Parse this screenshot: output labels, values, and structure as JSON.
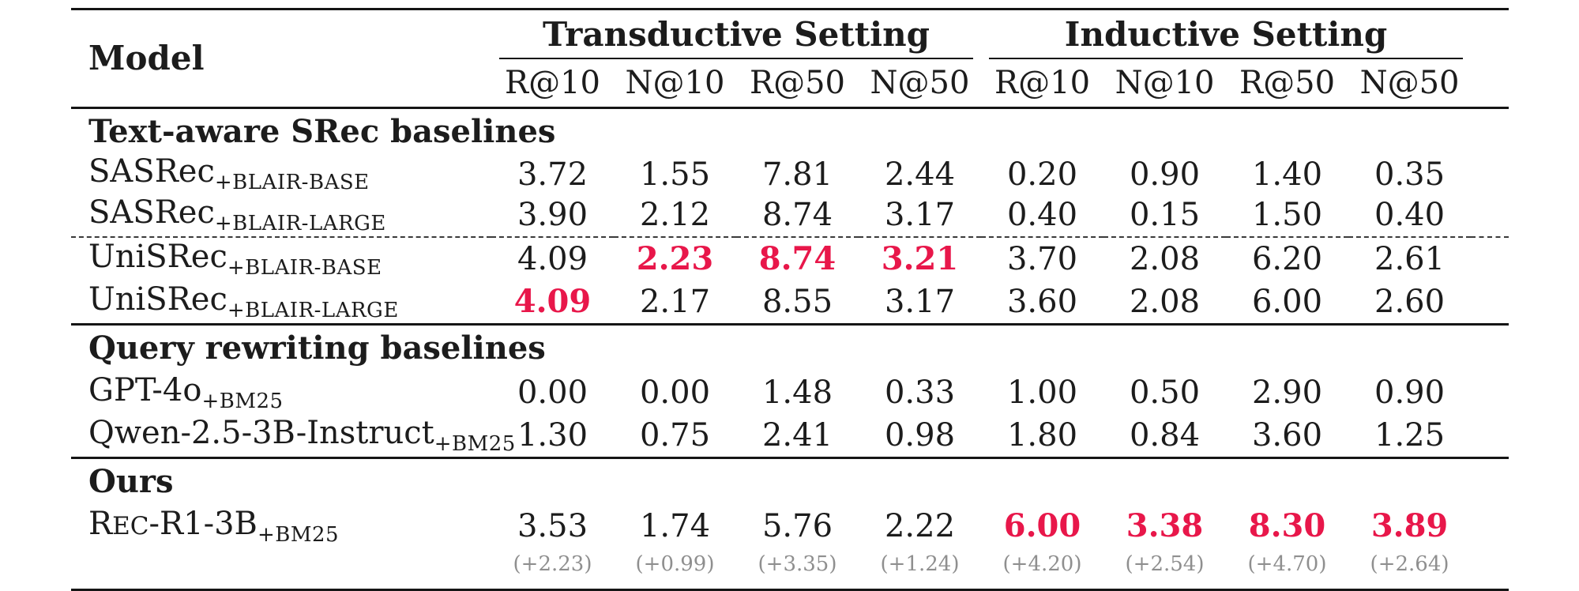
{
  "header": {
    "model_label": "Model",
    "groups": [
      {
        "label": "Transductive Setting",
        "metrics": [
          "R@10",
          "N@10",
          "R@50",
          "N@50"
        ]
      },
      {
        "label": "Inductive Setting",
        "metrics": [
          "R@10",
          "N@10",
          "R@50",
          "N@50"
        ]
      }
    ]
  },
  "sections": [
    {
      "header": "Text-aware SRec baselines",
      "rows": [
        {
          "model": "SASRec",
          "model_sub": "+BLAIR-BASE",
          "values": [
            "3.72",
            "1.55",
            "7.81",
            "2.44",
            "0.20",
            "0.90",
            "1.40",
            "0.35"
          ],
          "highlight_red_indices": []
        },
        {
          "model": "SASRec",
          "model_sub": "+BLAIR-LARGE",
          "values": [
            "3.90",
            "2.12",
            "8.74",
            "3.17",
            "0.40",
            "0.15",
            "1.50",
            "0.40"
          ],
          "highlight_red_indices": []
        },
        {
          "model": "UniSRec",
          "model_sub": "+BLAIR-BASE",
          "values": [
            "4.09",
            "2.23",
            "8.74",
            "3.21",
            "3.70",
            "2.08",
            "6.20",
            "2.61"
          ],
          "highlight_red_indices": [
            1,
            2,
            3
          ],
          "dashed_rule_above": true
        },
        {
          "model": "UniSRec",
          "model_sub": "+BLAIR-LARGE",
          "values": [
            "4.09",
            "2.17",
            "8.55",
            "3.17",
            "3.60",
            "2.08",
            "6.00",
            "2.60"
          ],
          "highlight_red_indices": [
            0
          ]
        }
      ]
    },
    {
      "header": "Query rewriting baselines",
      "rows": [
        {
          "model": "GPT-4o",
          "model_sub": "+BM25",
          "values": [
            "0.00",
            "0.00",
            "1.48",
            "0.33",
            "1.00",
            "0.50",
            "2.90",
            "0.90"
          ],
          "highlight_red_indices": []
        },
        {
          "model": "Qwen-2.5-3B-Instruct",
          "model_sub": "+BM25",
          "values": [
            "1.30",
            "0.75",
            "2.41",
            "0.98",
            "1.80",
            "0.84",
            "3.60",
            "1.25"
          ],
          "highlight_red_indices": []
        }
      ]
    },
    {
      "header": "Ours",
      "rows": [
        {
          "model_lead": "R",
          "model_smallcaps": "EC",
          "model_tail": "-R1-3B",
          "model_sub": "+BM25",
          "values": [
            "3.53",
            "1.74",
            "5.76",
            "2.22",
            "6.00",
            "3.38",
            "8.30",
            "3.89"
          ],
          "highlight_red_indices": [
            4,
            5,
            6,
            7
          ],
          "deltas": [
            "(+2.23)",
            "(+0.99)",
            "(+3.35)",
            "(+1.24)",
            "(+4.20)",
            "(+2.54)",
            "(+4.70)",
            "(+2.64)"
          ]
        }
      ]
    }
  ],
  "colors": {
    "highlight_red": "#e8174a",
    "delta_gray": "#8f8f8f",
    "rule_black": "#151515",
    "text_black": "#1c1c1c"
  }
}
